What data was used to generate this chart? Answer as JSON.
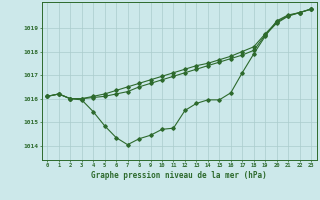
{
  "background_color": "#cce8ea",
  "line_color": "#2d6a2d",
  "grid_color": "#aacccc",
  "title": "Graphe pression niveau de la mer (hPa)",
  "xlabel_ticks": [
    0,
    1,
    2,
    3,
    4,
    5,
    6,
    7,
    8,
    9,
    10,
    11,
    12,
    13,
    14,
    15,
    16,
    17,
    18,
    19,
    20,
    21,
    22,
    23
  ],
  "ylim": [
    1013.4,
    1020.1
  ],
  "yticks": [
    1014,
    1015,
    1016,
    1017,
    1018,
    1019
  ],
  "series1_x": [
    0,
    1,
    2,
    3,
    4,
    5,
    6,
    7,
    8,
    9,
    10,
    11,
    12,
    13,
    14,
    15,
    16,
    17,
    18,
    19,
    20,
    21,
    22,
    23
  ],
  "series1_y": [
    1016.1,
    1016.2,
    1016.0,
    1015.95,
    1015.45,
    1014.85,
    1014.35,
    1014.05,
    1014.3,
    1014.45,
    1014.7,
    1014.75,
    1015.5,
    1015.8,
    1015.95,
    1015.95,
    1016.25,
    1017.1,
    1017.9,
    1018.65,
    1019.3,
    1019.55,
    1019.65,
    1019.8
  ],
  "series2_x": [
    0,
    1,
    2,
    3,
    4,
    5,
    6,
    7,
    8,
    9,
    10,
    11,
    12,
    13,
    14,
    15,
    16,
    17,
    18,
    19,
    20,
    21,
    22,
    23
  ],
  "series2_y": [
    1016.1,
    1016.2,
    1016.0,
    1016.0,
    1016.05,
    1016.1,
    1016.2,
    1016.3,
    1016.5,
    1016.65,
    1016.8,
    1016.95,
    1017.1,
    1017.25,
    1017.4,
    1017.55,
    1017.7,
    1017.85,
    1018.05,
    1018.7,
    1019.2,
    1019.5,
    1019.65,
    1019.8
  ],
  "series3_x": [
    0,
    1,
    2,
    3,
    4,
    5,
    6,
    7,
    8,
    9,
    10,
    11,
    12,
    13,
    14,
    15,
    16,
    17,
    18,
    19,
    20,
    21,
    22,
    23
  ],
  "series3_y": [
    1016.1,
    1016.2,
    1016.0,
    1016.0,
    1016.1,
    1016.2,
    1016.35,
    1016.5,
    1016.65,
    1016.8,
    1016.95,
    1017.1,
    1017.25,
    1017.4,
    1017.5,
    1017.65,
    1017.8,
    1018.0,
    1018.2,
    1018.75,
    1019.25,
    1019.52,
    1019.65,
    1019.8
  ]
}
